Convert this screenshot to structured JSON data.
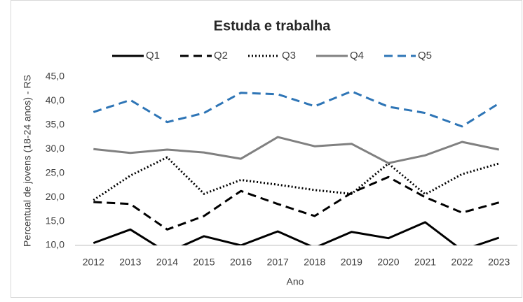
{
  "chart_data": {
    "type": "line",
    "title": "Estuda e trabalha",
    "x_label": "Ano",
    "y_label": "Percentual de jovens (18-24 anos) - RS",
    "categories": [
      "2012",
      "2013",
      "2014",
      "2015",
      "2016",
      "2017",
      "2018",
      "2019",
      "2020",
      "2021",
      "2022",
      "2023"
    ],
    "series": [
      {
        "name": "Q1",
        "color": "#000000",
        "dash": "solid",
        "values": [
          10.5,
          13.3,
          8.5,
          11.9,
          10.0,
          12.9,
          9.5,
          12.8,
          11.5,
          14.8,
          9.0,
          11.6
        ]
      },
      {
        "name": "Q2",
        "color": "#000000",
        "dash": "dash",
        "values": [
          19.0,
          18.6,
          13.3,
          16.1,
          21.3,
          18.6,
          16.1,
          20.9,
          24.2,
          20.0,
          16.8,
          18.9
        ]
      },
      {
        "name": "Q3",
        "color": "#000000",
        "dash": "dot",
        "values": [
          19.4,
          24.5,
          28.3,
          20.7,
          23.6,
          22.6,
          21.5,
          20.7,
          27.0,
          20.6,
          24.8,
          27.0
        ]
      },
      {
        "name": "Q4",
        "color": "#808080",
        "dash": "solid",
        "values": [
          30.0,
          29.2,
          29.9,
          29.3,
          28.0,
          32.5,
          30.6,
          31.1,
          27.1,
          28.7,
          31.5,
          29.9
        ]
      },
      {
        "name": "Q5",
        "color": "#2e75b6",
        "dash": "dash",
        "values": [
          37.7,
          40.2,
          35.6,
          37.5,
          41.7,
          41.4,
          38.9,
          42.0,
          38.8,
          37.5,
          34.7,
          39.5
        ]
      }
    ],
    "ylim": [
      10,
      45
    ],
    "yticks": [
      {
        "value": 10,
        "label": "10,0"
      },
      {
        "value": 15,
        "label": "15,0"
      },
      {
        "value": 20,
        "label": "20,0"
      },
      {
        "value": 25,
        "label": "25,0"
      },
      {
        "value": 30,
        "label": "30,0"
      },
      {
        "value": 35,
        "label": "35,0"
      },
      {
        "value": 40,
        "label": "40,0"
      },
      {
        "value": 45,
        "label": "45,0"
      }
    ],
    "grid": false,
    "legend": "top"
  }
}
